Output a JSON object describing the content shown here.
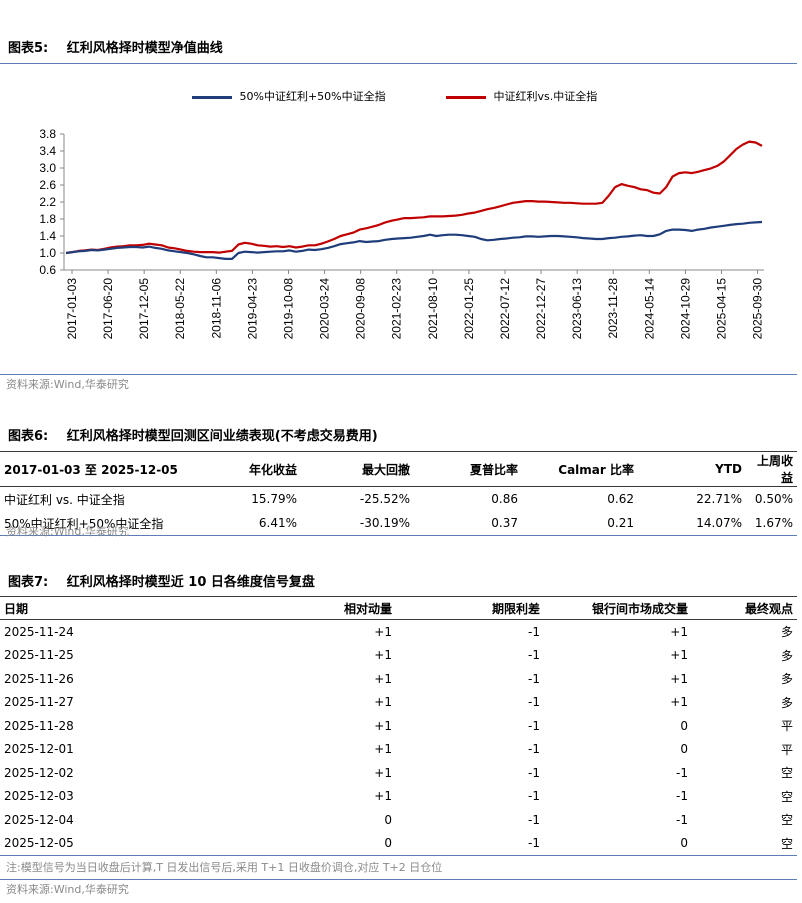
{
  "figure5": {
    "label": "图表5:",
    "title": "红利风格择时模型净值曲线",
    "source": "资料来源:Wind,华泰研究"
  },
  "chart_data": {
    "type": "line",
    "series": [
      {
        "name": "50%中证红利+50%中证全指",
        "color": "#1f3d7a",
        "values": [
          1.0,
          1.02,
          1.04,
          1.05,
          1.07,
          1.06,
          1.08,
          1.1,
          1.12,
          1.13,
          1.14,
          1.14,
          1.13,
          1.15,
          1.12,
          1.1,
          1.06,
          1.04,
          1.02,
          1.0,
          0.97,
          0.93,
          0.9,
          0.9,
          0.88,
          0.86,
          0.86,
          1.0,
          1.03,
          1.02,
          1.01,
          1.02,
          1.03,
          1.04,
          1.04,
          1.06,
          1.03,
          1.05,
          1.08,
          1.07,
          1.09,
          1.12,
          1.16,
          1.21,
          1.23,
          1.25,
          1.28,
          1.26,
          1.27,
          1.28,
          1.31,
          1.33,
          1.34,
          1.35,
          1.36,
          1.38,
          1.4,
          1.43,
          1.4,
          1.42,
          1.43,
          1.43,
          1.42,
          1.4,
          1.38,
          1.33,
          1.3,
          1.31,
          1.33,
          1.34,
          1.36,
          1.37,
          1.39,
          1.39,
          1.38,
          1.39,
          1.4,
          1.4,
          1.39,
          1.38,
          1.37,
          1.35,
          1.34,
          1.33,
          1.33,
          1.35,
          1.36,
          1.38,
          1.39,
          1.41,
          1.42,
          1.4,
          1.4,
          1.44,
          1.52,
          1.55,
          1.55,
          1.54,
          1.52,
          1.55,
          1.57,
          1.6,
          1.62,
          1.64,
          1.66,
          1.68,
          1.69,
          1.71,
          1.72,
          1.73
        ]
      },
      {
        "name": "中证红利vs.中证全指",
        "color": "#c00000",
        "values": [
          1.0,
          1.02,
          1.05,
          1.06,
          1.08,
          1.07,
          1.1,
          1.13,
          1.15,
          1.16,
          1.18,
          1.18,
          1.19,
          1.22,
          1.2,
          1.18,
          1.13,
          1.11,
          1.08,
          1.05,
          1.03,
          1.02,
          1.02,
          1.02,
          1.01,
          1.03,
          1.05,
          1.2,
          1.24,
          1.22,
          1.18,
          1.17,
          1.15,
          1.16,
          1.14,
          1.16,
          1.13,
          1.15,
          1.18,
          1.18,
          1.22,
          1.27,
          1.33,
          1.4,
          1.44,
          1.48,
          1.55,
          1.58,
          1.62,
          1.66,
          1.72,
          1.76,
          1.79,
          1.82,
          1.82,
          1.83,
          1.84,
          1.86,
          1.86,
          1.86,
          1.87,
          1.88,
          1.9,
          1.93,
          1.95,
          1.99,
          2.03,
          2.06,
          2.1,
          2.14,
          2.18,
          2.2,
          2.22,
          2.22,
          2.21,
          2.21,
          2.2,
          2.19,
          2.18,
          2.18,
          2.17,
          2.16,
          2.16,
          2.16,
          2.18,
          2.35,
          2.55,
          2.62,
          2.58,
          2.55,
          2.5,
          2.48,
          2.42,
          2.4,
          2.55,
          2.8,
          2.88,
          2.9,
          2.88,
          2.91,
          2.95,
          2.99,
          3.05,
          3.15,
          3.3,
          3.45,
          3.55,
          3.62,
          3.6,
          3.52
        ]
      }
    ],
    "x_ticks": [
      "2017-01-03",
      "2017-06-20",
      "2017-12-05",
      "2018-05-22",
      "2018-11-06",
      "2019-04-23",
      "2019-10-08",
      "2020-03-24",
      "2020-09-08",
      "2021-02-23",
      "2021-08-10",
      "2022-01-25",
      "2022-07-12",
      "2022-12-27",
      "2023-06-13",
      "2023-11-28",
      "2024-05-14",
      "2024-10-29",
      "2025-04-15",
      "2025-09-30"
    ],
    "y_ticks": [
      "0.6",
      "1.0",
      "1.4",
      "1.8",
      "2.2",
      "2.6",
      "3.0",
      "3.4",
      "3.8"
    ],
    "ylim": [
      0.6,
      3.8
    ],
    "legend_position": "top",
    "grid": false
  },
  "figure6": {
    "label": "图表6:",
    "title": "红利风格择时模型回测区间业绩表现(不考虑交易费用)",
    "headers": [
      "2017-01-03 至 2025-12-05",
      "年化收益",
      "最大回撤",
      "夏普比率",
      "Calmar 比率",
      "YTD",
      "上周收益"
    ],
    "rows": [
      [
        "中证红利 vs. 中证全指",
        "15.79%",
        "-25.52%",
        "0.86",
        "0.62",
        "22.71%",
        "0.50%"
      ],
      [
        "50%中证红利+50%中证全指",
        "6.41%",
        "-30.19%",
        "0.37",
        "0.21",
        "14.07%",
        "1.67%"
      ]
    ],
    "source": "资料来源:Wind,华泰研究"
  },
  "figure7": {
    "label": "图表7:",
    "title": "红利风格择时模型近 10 日各维度信号复盘",
    "headers": [
      "日期",
      "相对动量",
      "期限利差",
      "银行间市场成交量",
      "最终观点"
    ],
    "rows": [
      [
        "2025-11-24",
        "+1",
        "-1",
        "+1",
        "多"
      ],
      [
        "2025-11-25",
        "+1",
        "-1",
        "+1",
        "多"
      ],
      [
        "2025-11-26",
        "+1",
        "-1",
        "+1",
        "多"
      ],
      [
        "2025-11-27",
        "+1",
        "-1",
        "+1",
        "多"
      ],
      [
        "2025-11-28",
        "+1",
        "-1",
        "0",
        "平"
      ],
      [
        "2025-12-01",
        "+1",
        "-1",
        "0",
        "平"
      ],
      [
        "2025-12-02",
        "+1",
        "-1",
        "-1",
        "空"
      ],
      [
        "2025-12-03",
        "+1",
        "-1",
        "-1",
        "空"
      ],
      [
        "2025-12-04",
        "0",
        "-1",
        "-1",
        "空"
      ],
      [
        "2025-12-05",
        "0",
        "-1",
        "0",
        "空"
      ]
    ],
    "note": "注:模型信号为当日收盘后计算,T 日发出信号后,采用 T+1 日收盘价调仓,对应 T+2 日仓位",
    "source": "资料来源:Wind,华泰研究"
  }
}
